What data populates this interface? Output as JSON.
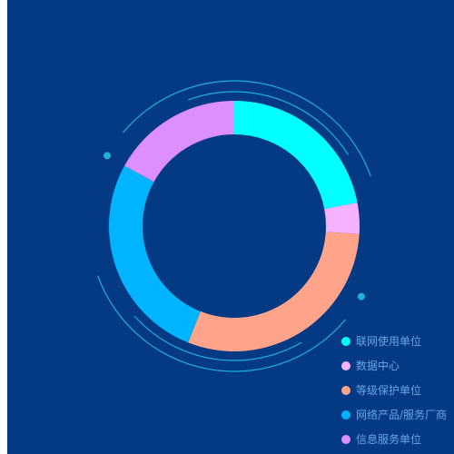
{
  "chart_data": {
    "type": "pie",
    "donut": true,
    "categories": [
      "联网使用单位",
      "数据中心",
      "等级保护单位",
      "网络产品/服务厂商",
      "信息服务单位"
    ],
    "values": [
      22,
      4,
      30,
      27,
      17
    ],
    "colors": [
      "#00ffff",
      "#f5b3ff",
      "#ffa48b",
      "#00b4ff",
      "#de8fff"
    ],
    "legend_position": "bottom-right"
  },
  "decor": {
    "ring_color": "#1fb0d6",
    "background": "#043a84"
  }
}
